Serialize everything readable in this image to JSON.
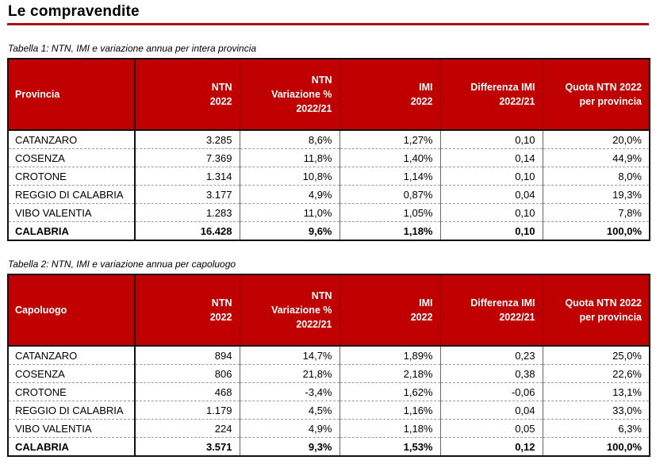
{
  "page": {
    "title": "Le compravendite"
  },
  "colors": {
    "header_bg": "#c00000",
    "header_text": "#ffffff",
    "title_rule": "#a81414",
    "table_outer_border": "#111111"
  },
  "tables": [
    {
      "caption": "Tabella 1: NTN, IMI e variazione annua per intera provincia",
      "columns": [
        "Provincia",
        "NTN\n2022",
        "NTN\nVariazione %\n2022/21",
        "IMI\n2022",
        "Differenza IMI\n2022/21",
        "Quota NTN 2022\nper provincia"
      ],
      "rows": [
        [
          "CATANZARO",
          "3.285",
          "8,6%",
          "1,27%",
          "0,10",
          "20,0%"
        ],
        [
          "COSENZA",
          "7.369",
          "11,8%",
          "1,40%",
          "0,14",
          "44,9%"
        ],
        [
          "CROTONE",
          "1.314",
          "10,8%",
          "1,14%",
          "0,10",
          "8,0%"
        ],
        [
          "REGGIO DI CALABRIA",
          "3.177",
          "4,9%",
          "0,87%",
          "0,04",
          "19,3%"
        ],
        [
          "VIBO VALENTIA",
          "1.283",
          "11,0%",
          "1,05%",
          "0,10",
          "7,8%"
        ],
        [
          "CALABRIA",
          "16.428",
          "9,6%",
          "1,18%",
          "0,10",
          "100,0%"
        ]
      ]
    },
    {
      "caption": "Tabella 2: NTN, IMI e variazione annua per capoluogo",
      "columns": [
        "Capoluogo",
        "NTN\n2022",
        "NTN\nVariazione %\n2022/21",
        "IMI\n2022",
        "Differenza IMI\n2022/21",
        "Quota NTN 2022\nper provincia"
      ],
      "rows": [
        [
          "CATANZARO",
          "894",
          "14,7%",
          "1,89%",
          "0,23",
          "25,0%"
        ],
        [
          "COSENZA",
          "806",
          "21,8%",
          "2,18%",
          "0,38",
          "22,6%"
        ],
        [
          "CROTONE",
          "468",
          "-3,4%",
          "1,62%",
          "-0,06",
          "13,1%"
        ],
        [
          "REGGIO DI CALABRIA",
          "1.179",
          "4,5%",
          "1,16%",
          "0,04",
          "33,0%"
        ],
        [
          "VIBO VALENTIA",
          "224",
          "4,9%",
          "1,18%",
          "0,05",
          "6,3%"
        ],
        [
          "CALABRIA",
          "3.571",
          "9,3%",
          "1,53%",
          "0,12",
          "100,0%"
        ]
      ]
    }
  ]
}
